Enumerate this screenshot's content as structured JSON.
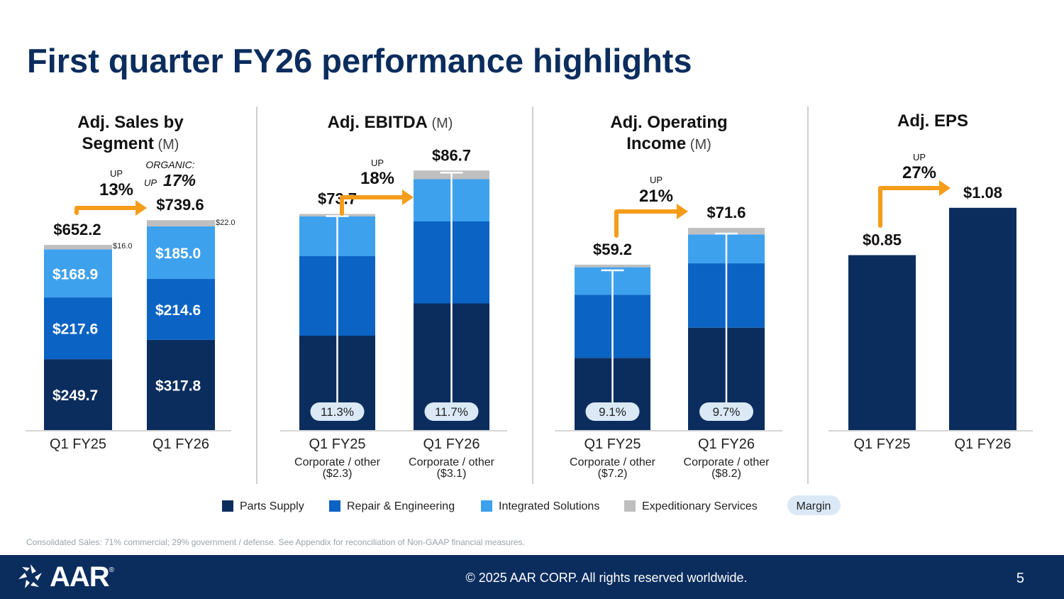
{
  "page": {
    "title": "First quarter FY26 performance highlights",
    "footnote": "Consolidated Sales: 71% commercial; 29% government / defense. See Appendix for reconciliation of Non-GAAP financial measures.",
    "copyright": "© 2025 AAR CORP. All rights reserved worldwide.",
    "page_number": "5",
    "logo_text": "AAR",
    "logo_mark": "®"
  },
  "colors": {
    "parts_supply": "#0b2d5e",
    "repair_engineering": "#0b63c4",
    "integrated_solutions": "#3ea1ee",
    "expeditionary_services": "#bfbfbf",
    "margin_pill": "#dbe9f7",
    "arrow": "#f59c1a",
    "title": "#0b2d5e"
  },
  "legend": {
    "items": [
      {
        "label": "Parts Supply",
        "color": "#0b2d5e"
      },
      {
        "label": "Repair & Engineering",
        "color": "#0b63c4"
      },
      {
        "label": "Integrated Solutions",
        "color": "#3ea1ee"
      },
      {
        "label": "Expeditionary Services",
        "color": "#bfbfbf"
      }
    ],
    "margin_label": "Margin"
  },
  "chart_data": [
    {
      "type": "bar",
      "title": "Adj. Sales by Segment",
      "title_lines": [
        "Adj. Sales by",
        "Segment"
      ],
      "unit": "(M)",
      "categories": [
        "Q1 FY25",
        "Q1 FY26"
      ],
      "series": [
        {
          "name": "Parts Supply",
          "values": [
            249.7,
            317.8
          ],
          "labels": [
            "$249.7",
            "$317.8"
          ]
        },
        {
          "name": "Repair & Engineering",
          "values": [
            217.6,
            214.6
          ],
          "labels": [
            "$217.6",
            "$214.6"
          ]
        },
        {
          "name": "Integrated Solutions",
          "values": [
            168.9,
            185.0
          ],
          "labels": [
            "$168.9",
            "$185.0"
          ]
        },
        {
          "name": "Expeditionary Services",
          "values": [
            16.0,
            22.0
          ],
          "labels": [
            "$16.0",
            "$22.0"
          ]
        }
      ],
      "totals": [
        "$652.2",
        "$739.6"
      ],
      "growth": {
        "up_label": "UP",
        "value": "13%"
      },
      "organic": {
        "label": "ORGANIC:",
        "up_label": "UP",
        "value": "17%"
      }
    },
    {
      "type": "bar",
      "title": "Adj. EBITDA",
      "title_lines": [
        "Adj. EBITDA"
      ],
      "unit": "(M)",
      "categories": [
        "Q1 FY25",
        "Q1 FY26"
      ],
      "series": [
        {
          "name": "Parts Supply",
          "values": [
            38.0,
            51.0
          ]
        },
        {
          "name": "Repair & Engineering",
          "values": [
            32.0,
            33.0
          ]
        },
        {
          "name": "Integrated Solutions",
          "values": [
            16.0,
            17.0
          ]
        },
        {
          "name": "Expeditionary Services",
          "values": [
            1.0,
            3.5
          ]
        }
      ],
      "totals": [
        "$73.7",
        "$86.7"
      ],
      "margins": [
        "11.3%",
        "11.7%"
      ],
      "corporate": [
        {
          "label": "Corporate / other",
          "value": "($2.3)"
        },
        {
          "label": "Corporate / other",
          "value": "($3.1)"
        }
      ],
      "growth": {
        "up_label": "UP",
        "value": "18%"
      }
    },
    {
      "type": "bar",
      "title": "Adj. Operating Income",
      "title_lines": [
        "Adj. Operating",
        "Income"
      ],
      "unit": "(M)",
      "categories": [
        "Q1 FY25",
        "Q1 FY26"
      ],
      "series": [
        {
          "name": "Parts Supply",
          "values": [
            27.5,
            39.0
          ]
        },
        {
          "name": "Repair & Engineering",
          "values": [
            24.0,
            24.5
          ]
        },
        {
          "name": "Integrated Solutions",
          "values": [
            10.5,
            11.0
          ]
        },
        {
          "name": "Expeditionary Services",
          "values": [
            1.0,
            2.5
          ]
        }
      ],
      "totals": [
        "$59.2",
        "$71.6"
      ],
      "margins": [
        "9.1%",
        "9.7%"
      ],
      "corporate": [
        {
          "label": "Corporate / other",
          "value": "($7.2)"
        },
        {
          "label": "Corporate / other",
          "value": "($8.2)"
        }
      ],
      "growth": {
        "up_label": "UP",
        "value": "21%"
      }
    },
    {
      "type": "bar",
      "title": "Adj. EPS",
      "title_lines": [
        "Adj. EPS"
      ],
      "unit": "",
      "categories": [
        "Q1 FY25",
        "Q1 FY26"
      ],
      "values": [
        0.85,
        1.08
      ],
      "totals": [
        "$0.85",
        "$1.08"
      ],
      "growth": {
        "up_label": "UP",
        "value": "27%"
      }
    }
  ]
}
